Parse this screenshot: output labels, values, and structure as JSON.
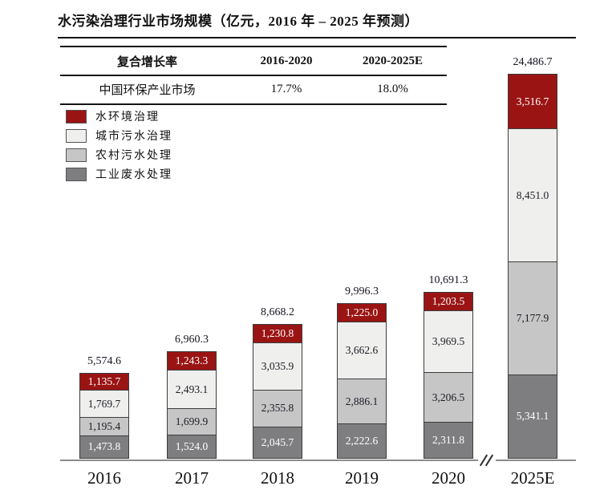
{
  "title": "水污染治理行业市场规模（亿元，2016 年 – 2025 年预测）",
  "table": {
    "headers": [
      "复合增长率",
      "2016-2020",
      "2020-2025E"
    ],
    "rows": [
      {
        "name": "中国环保产业市场",
        "cagr_2016_2020": "17.7%",
        "cagr_2020_2025e": "18.0%"
      }
    ]
  },
  "legend": [
    {
      "label": "水环境治理",
      "color": "#9A1414"
    },
    {
      "label": "城市污水治理",
      "color": "#EFEFED"
    },
    {
      "label": "农村污水处理",
      "color": "#C6C6C6"
    },
    {
      "label": "工业废水处理",
      "color": "#7E7E80"
    }
  ],
  "chart_data": {
    "type": "bar",
    "stacked": true,
    "title": "水污染治理行业市场规模（亿元，2016 年 – 2025 年预测）",
    "categories": [
      "2016",
      "2017",
      "2018",
      "2019",
      "2020",
      "2025E"
    ],
    "series": [
      {
        "name": "工业废水处理",
        "color": "#7E7E80",
        "text_color": "#ffffff",
        "values": [
          1473.8,
          1524.0,
          2045.7,
          2222.6,
          2311.8,
          5341.1
        ]
      },
      {
        "name": "农村污水处理",
        "color": "#C6C6C6",
        "text_color": "#1c1c28",
        "values": [
          1195.4,
          1699.9,
          2355.8,
          2886.1,
          3206.5,
          7177.9
        ]
      },
      {
        "name": "城市污水治理",
        "color": "#EFEFED",
        "text_color": "#1c1c28",
        "values": [
          1769.7,
          2493.1,
          3035.9,
          3662.6,
          3969.5,
          8451.0
        ]
      },
      {
        "name": "水环境治理",
        "color": "#9A1414",
        "text_color": "#ffffff",
        "values": [
          1135.7,
          1243.3,
          1230.8,
          1225.0,
          1203.5,
          3516.7
        ]
      }
    ],
    "totals": [
      5574.6,
      6960.3,
      8668.2,
      9996.3,
      10691.3,
      24486.7
    ],
    "unit": "亿元",
    "axis_break_after": "2020",
    "ylim": [
      0,
      24486.7
    ],
    "grid": false,
    "legend_position": "top-left",
    "cagr_table": {
      "复合增长率": "中国环保产业市场",
      "2016-2020": "17.7%",
      "2020-2025E": "18.0%"
    }
  }
}
